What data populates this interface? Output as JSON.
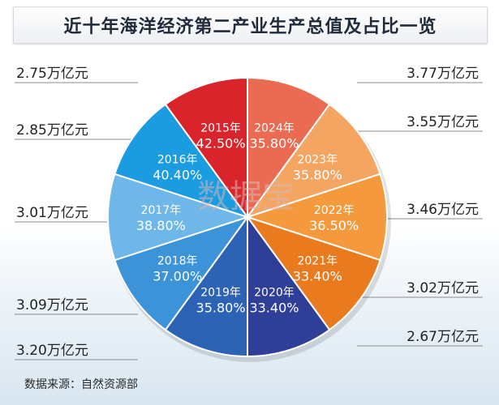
{
  "title": "近十年海洋经济第二产业生产总值及占比一览",
  "source": "数据来源：自然资源部",
  "watermark": "数据宝",
  "chart_data": {
    "type": "pie",
    "title": "近十年海洋经济第二产业生产总值及占比一览",
    "slices": [
      {
        "year": "2024年",
        "pct_label": "35.80%",
        "value_label": "3.77万亿元",
        "side": "right",
        "color": "#ea6b52",
        "share": 0.1
      },
      {
        "year": "2023年",
        "pct_label": "35.80%",
        "value_label": "3.55万亿元",
        "side": "right",
        "color": "#f4a561",
        "share": 0.1
      },
      {
        "year": "2022年",
        "pct_label": "36.50%",
        "value_label": "3.46万亿元",
        "side": "right",
        "color": "#f49a3d",
        "share": 0.1
      },
      {
        "year": "2021年",
        "pct_label": "33.40%",
        "value_label": "3.02万亿元",
        "side": "right",
        "color": "#e97b1e",
        "share": 0.1
      },
      {
        "year": "2020年",
        "pct_label": "33.40%",
        "value_label": "2.67万亿元",
        "side": "right",
        "color": "#2f3f98",
        "share": 0.1
      },
      {
        "year": "2019年",
        "pct_label": "35.80%",
        "value_label": "3.20万亿元",
        "side": "left",
        "color": "#2c63b4",
        "share": 0.1
      },
      {
        "year": "2018年",
        "pct_label": "37.00%",
        "value_label": "3.09万亿元",
        "side": "left",
        "color": "#3c93d8",
        "share": 0.1
      },
      {
        "year": "2017年",
        "pct_label": "38.80%",
        "value_label": "3.01万亿元",
        "side": "left",
        "color": "#6fb7e8",
        "share": 0.1
      },
      {
        "year": "2016年",
        "pct_label": "40.40%",
        "value_label": "2.85万亿元",
        "side": "left",
        "color": "#1b9be0",
        "share": 0.1
      },
      {
        "year": "2015年",
        "pct_label": "42.50%",
        "value_label": "2.75万亿元",
        "side": "left",
        "color": "#d9242c",
        "share": 0.1
      }
    ]
  }
}
